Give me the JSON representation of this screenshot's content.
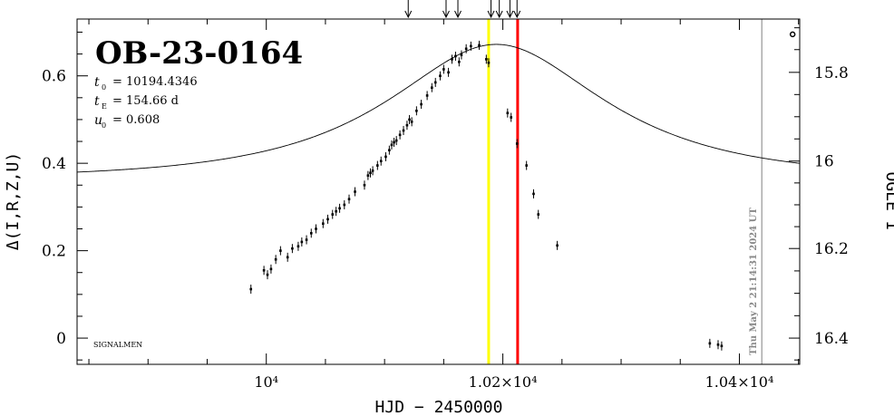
{
  "chart_data": {
    "type": "scatter",
    "title": "OB-23-0164",
    "params": [
      {
        "label": "t",
        "sub": "0",
        "value": "= 10194.4346"
      },
      {
        "label": "t",
        "sub": "E",
        "value": "= 154.66 d"
      },
      {
        "label": "u",
        "sub": "0",
        "value": "= 0.608"
      }
    ],
    "watermark": "SIGNALMEN",
    "xlabel": "HJD − 2450000",
    "ylabel_left": "Δ(I,R,Z,U)",
    "ylabel_right": "OGLE I",
    "timestamp": "Thu May 2 21:14:31 2024 UT",
    "xlim": [
      9840,
      10451
    ],
    "ylim": [
      -0.06,
      0.73
    ],
    "x_ticks": [
      {
        "value": 10000,
        "label": "10⁴"
      },
      {
        "value": 10200,
        "label": "1.02×10⁴"
      },
      {
        "value": 10400,
        "label": "1.04×10⁴"
      }
    ],
    "y_ticks_left": [
      {
        "value": 0,
        "label": "0"
      },
      {
        "value": 0.2,
        "label": "0.2"
      },
      {
        "value": 0.4,
        "label": "0.4"
      },
      {
        "value": 0.6,
        "label": "0.6"
      }
    ],
    "y_ticks_right": [
      {
        "value": 0.0,
        "label": "16.4"
      },
      {
        "value": 0.205,
        "label": "16.2"
      },
      {
        "value": 0.405,
        "label": "16"
      },
      {
        "value": 0.608,
        "label": "15.8"
      }
    ],
    "model": {
      "t0": 10194.4346,
      "tE": 154.66,
      "u0": 0.608,
      "fs": 0.378
    },
    "vlines": [
      {
        "x": 10188,
        "color": "#ffff00"
      },
      {
        "x": 10212.5,
        "color": "#ff0000"
      },
      {
        "x": 10419,
        "color": "#aaaaaa"
      }
    ],
    "arrows_x": [
      10120,
      10152,
      10162,
      10190,
      10197,
      10206,
      10212
    ],
    "other_point": {
      "x": 10445,
      "y": 0.695
    },
    "points": [
      {
        "x": 9987,
        "y": 0.112
      },
      {
        "x": 9998,
        "y": 0.155
      },
      {
        "x": 10001,
        "y": 0.145
      },
      {
        "x": 10004,
        "y": 0.158
      },
      {
        "x": 10008,
        "y": 0.18
      },
      {
        "x": 10012,
        "y": 0.2
      },
      {
        "x": 10018,
        "y": 0.185
      },
      {
        "x": 10022,
        "y": 0.205
      },
      {
        "x": 10027,
        "y": 0.21
      },
      {
        "x": 10030,
        "y": 0.22
      },
      {
        "x": 10034,
        "y": 0.225
      },
      {
        "x": 10038,
        "y": 0.24
      },
      {
        "x": 10042,
        "y": 0.25
      },
      {
        "x": 10048,
        "y": 0.262
      },
      {
        "x": 10052,
        "y": 0.272
      },
      {
        "x": 10056,
        "y": 0.283
      },
      {
        "x": 10059,
        "y": 0.29
      },
      {
        "x": 10062,
        "y": 0.297
      },
      {
        "x": 10066,
        "y": 0.305
      },
      {
        "x": 10070,
        "y": 0.318
      },
      {
        "x": 10075,
        "y": 0.335
      },
      {
        "x": 10083,
        "y": 0.35
      },
      {
        "x": 10086,
        "y": 0.372
      },
      {
        "x": 10088,
        "y": 0.378
      },
      {
        "x": 10090,
        "y": 0.383
      },
      {
        "x": 10094,
        "y": 0.395
      },
      {
        "x": 10097,
        "y": 0.405
      },
      {
        "x": 10101,
        "y": 0.415
      },
      {
        "x": 10104,
        "y": 0.43
      },
      {
        "x": 10106,
        "y": 0.442
      },
      {
        "x": 10108,
        "y": 0.448
      },
      {
        "x": 10110,
        "y": 0.452
      },
      {
        "x": 10113,
        "y": 0.465
      },
      {
        "x": 10116,
        "y": 0.475
      },
      {
        "x": 10119,
        "y": 0.487
      },
      {
        "x": 10121,
        "y": 0.5
      },
      {
        "x": 10123,
        "y": 0.495
      },
      {
        "x": 10127,
        "y": 0.52
      },
      {
        "x": 10131,
        "y": 0.535
      },
      {
        "x": 10136,
        "y": 0.555
      },
      {
        "x": 10140,
        "y": 0.573
      },
      {
        "x": 10143,
        "y": 0.585
      },
      {
        "x": 10147,
        "y": 0.6
      },
      {
        "x": 10150,
        "y": 0.615
      },
      {
        "x": 10154,
        "y": 0.608
      },
      {
        "x": 10157,
        "y": 0.638
      },
      {
        "x": 10160,
        "y": 0.645
      },
      {
        "x": 10163,
        "y": 0.632
      },
      {
        "x": 10165,
        "y": 0.648
      },
      {
        "x": 10169,
        "y": 0.662
      },
      {
        "x": 10173,
        "y": 0.668
      },
      {
        "x": 10180,
        "y": 0.67
      },
      {
        "x": 10186,
        "y": 0.638
      },
      {
        "x": 10188,
        "y": 0.63
      },
      {
        "x": 10204,
        "y": 0.515
      },
      {
        "x": 10207,
        "y": 0.505
      },
      {
        "x": 10212,
        "y": 0.445
      },
      {
        "x": 10220,
        "y": 0.395
      },
      {
        "x": 10226,
        "y": 0.33
      },
      {
        "x": 10230,
        "y": 0.283
      },
      {
        "x": 10246,
        "y": 0.212
      },
      {
        "x": 10375,
        "y": -0.012
      },
      {
        "x": 10382,
        "y": -0.015
      },
      {
        "x": 10385,
        "y": -0.018
      }
    ]
  }
}
